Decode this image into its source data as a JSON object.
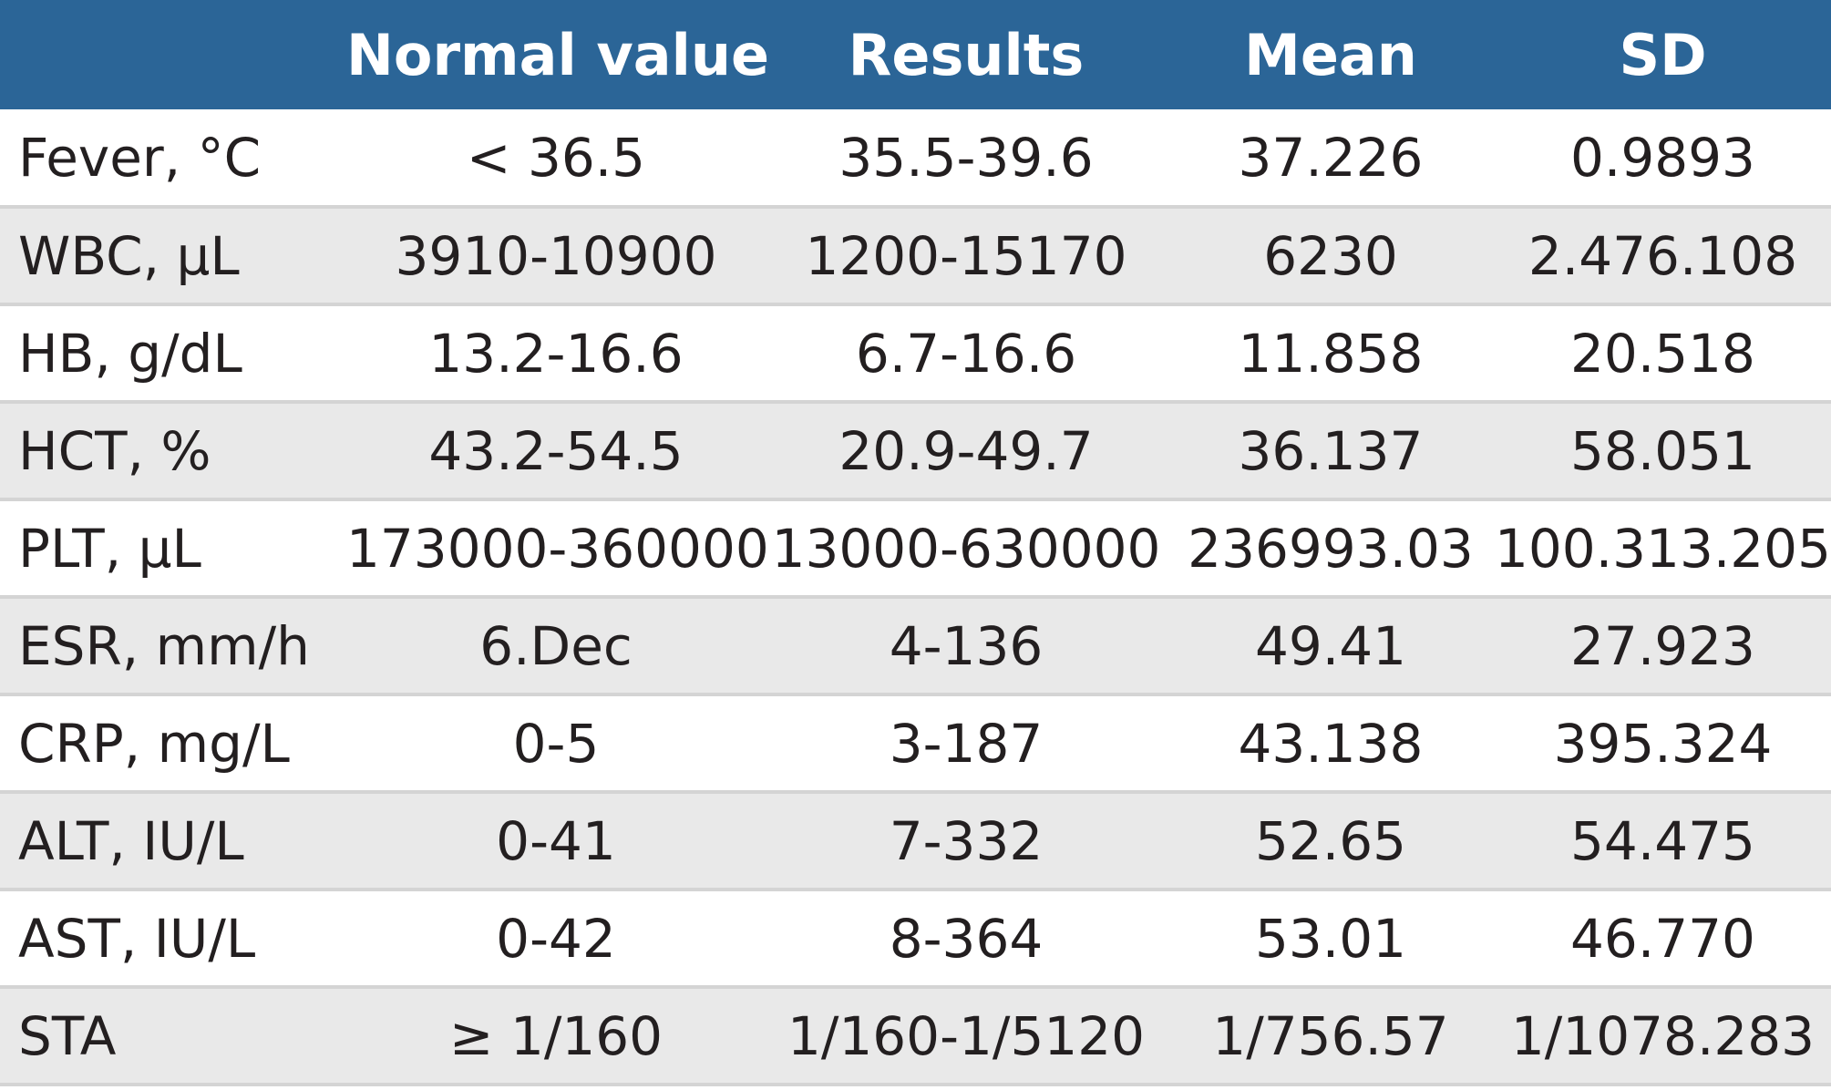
{
  "table": {
    "headers": [
      "",
      "Normal value",
      "Results",
      "Mean",
      "SD"
    ],
    "rows": [
      {
        "parameter": "Fever, °C",
        "normal": "< 36.5",
        "results": "35.5-39.6",
        "mean": "37.226",
        "sd": "0.9893"
      },
      {
        "parameter": "WBC, μL",
        "normal": "3910-10900",
        "results": "1200-15170",
        "mean": "6230",
        "sd": "2.476.108"
      },
      {
        "parameter": "HB, g/dL",
        "normal": "13.2-16.6",
        "results": "6.7-16.6",
        "mean": "11.858",
        "sd": "20.518"
      },
      {
        "parameter": "HCT, %",
        "normal": "43.2-54.5",
        "results": "20.9-49.7",
        "mean": "36.137",
        "sd": "58.051"
      },
      {
        "parameter": "PLT, μL",
        "normal": "173000-360000",
        "results": "13000-630000",
        "mean": "236993.03",
        "sd": "100.313.205"
      },
      {
        "parameter": "ESR, mm/h",
        "normal": "6.Dec",
        "results": "4-136",
        "mean": "49.41",
        "sd": "27.923"
      },
      {
        "parameter": "CRP, mg/L",
        "normal": "0-5",
        "results": "3-187",
        "mean": "43.138",
        "sd": "395.324"
      },
      {
        "parameter": "ALT, IU/L",
        "normal": "0-41",
        "results": "7-332",
        "mean": "52.65",
        "sd": "54.475"
      },
      {
        "parameter": "AST, IU/L",
        "normal": "0-42",
        "results": "8-364",
        "mean": "53.01",
        "sd": "46.770"
      },
      {
        "parameter": "STA",
        "normal": "≥ 1/160",
        "results": "1/160-1/5120",
        "mean": "1/756.57",
        "sd": "1/1078.283"
      }
    ]
  },
  "colors": {
    "header_bg": "#2b6597",
    "header_text": "#ffffff",
    "row_alt_bg": "#e9e9e9",
    "row_bg": "#ffffff",
    "text": "#231f20"
  }
}
